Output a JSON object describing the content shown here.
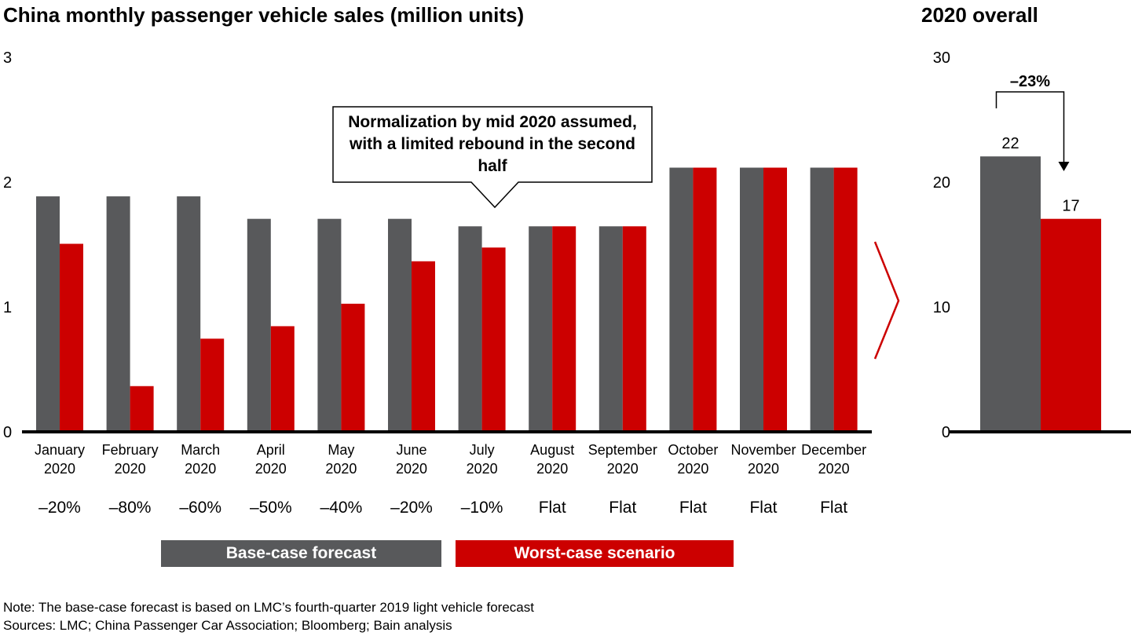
{
  "titles": {
    "main": "China monthly passenger vehicle sales (million units)",
    "right": "2020 overall"
  },
  "callout": {
    "text": "Normalization by mid 2020 assumed, with a limited rebound in the second half"
  },
  "legend": {
    "base_label": "Base-case forecast",
    "worst_label": "Worst-case scenario"
  },
  "notes": {
    "note": "Note: The base-case forecast is based on LMC’s fourth-quarter 2019 light vehicle forecast",
    "sources": "Sources: LMC; China Passenger Car Association; Bloomberg; Bain analysis"
  },
  "colors": {
    "base": "#58595B",
    "worst": "#CC0000",
    "axis": "#000000"
  },
  "chart_data": [
    {
      "type": "bar",
      "title": "China monthly passenger vehicle sales (million units)",
      "xlabel": "",
      "ylabel": "million units",
      "ylim": [
        0,
        3
      ],
      "yticks": [
        0,
        1,
        2,
        3
      ],
      "grid": false,
      "legend_position": "bottom",
      "categories": [
        [
          "January",
          "2020"
        ],
        [
          "February",
          "2020"
        ],
        [
          "March",
          "2020"
        ],
        [
          "April",
          "2020"
        ],
        [
          "May",
          "2020"
        ],
        [
          "June",
          "2020"
        ],
        [
          "July",
          "2020"
        ],
        [
          "August",
          "2020"
        ],
        [
          "September",
          "2020"
        ],
        [
          "October",
          "2020"
        ],
        [
          "November",
          "2020"
        ],
        [
          "December",
          "2020"
        ]
      ],
      "series": [
        {
          "name": "Base-case forecast",
          "color": "#58595B",
          "values": [
            1.88,
            1.88,
            1.88,
            1.7,
            1.7,
            1.7,
            1.64,
            1.64,
            1.64,
            2.11,
            2.11,
            2.11
          ]
        },
        {
          "name": "Worst-case scenario",
          "color": "#CC0000",
          "values": [
            1.5,
            0.36,
            0.74,
            0.84,
            1.02,
            1.36,
            1.47,
            1.64,
            1.64,
            2.11,
            2.11,
            2.11
          ]
        }
      ],
      "change_labels": [
        "–20%",
        "–80%",
        "–60%",
        "–50%",
        "–40%",
        "–20%",
        "–10%",
        "Flat",
        "Flat",
        "Flat",
        "Flat",
        "Flat"
      ],
      "annotations": [
        "Normalization by mid 2020 assumed, with a limited rebound in the second half"
      ]
    },
    {
      "type": "bar",
      "title": "2020 overall",
      "ylim": [
        0,
        30
      ],
      "yticks": [
        0,
        10,
        20,
        30
      ],
      "grid": false,
      "categories": [
        "Base-case forecast",
        "Worst-case scenario"
      ],
      "values": [
        22,
        17
      ],
      "data_labels": [
        "22",
        "17"
      ],
      "colors": [
        "#58595B",
        "#CC0000"
      ],
      "annotations": [
        "–23%"
      ]
    }
  ]
}
